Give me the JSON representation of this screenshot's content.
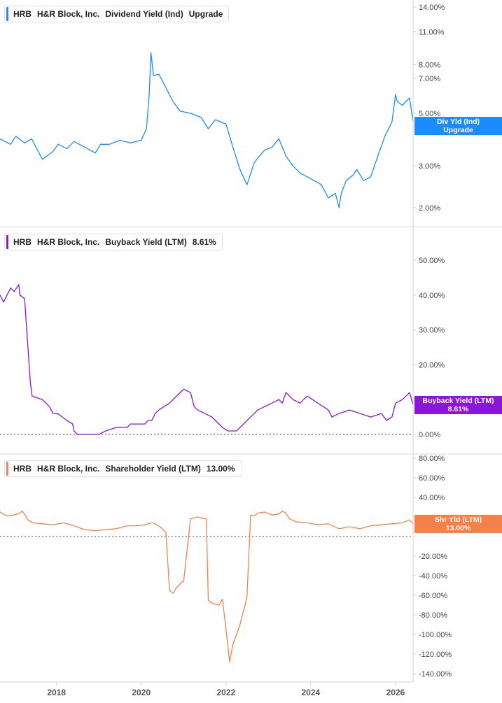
{
  "ticker": "HRB",
  "company": "H&R Block, Inc.",
  "panels": [
    {
      "metric": "Dividend Yield (Ind)",
      "value": "Upgrade",
      "badge_line1": "Div Yld (Ind)",
      "badge_line2": "Upgrade",
      "color": "#1a8cff"
    },
    {
      "metric": "Buyback Yield (LTM)",
      "value": "8.61%",
      "badge_line1": "Buyback Yield (LTM)",
      "badge_line2": "8.61%",
      "color": "#8a16d8"
    },
    {
      "metric": "Shareholder Yield (LTM)",
      "value": "13.00%",
      "badge_line1": "Shr Yld (LTM)",
      "badge_line2": "13.00%",
      "color": "#f5814a"
    }
  ],
  "x_tick_labels": [
    "2018",
    "2020",
    "2022",
    "2024",
    "2026"
  ],
  "chart_data": [
    {
      "type": "line",
      "series": [
        {
          "name": "Dividend Yield (Ind)",
          "color": "#1a8cff",
          "x": [
            "2016-09-01",
            "2016-12-01",
            "2017-01-15",
            "2017-04-01",
            "2017-06-01",
            "2017-09-01",
            "2017-12-01",
            "2018-01-15",
            "2018-04-01",
            "2018-06-01",
            "2018-09-01",
            "2018-12-01",
            "2019-01-15",
            "2019-04-01",
            "2019-07-01",
            "2019-10-01",
            "2020-01-01",
            "2020-02-15",
            "2020-03-10",
            "2020-03-25",
            "2020-04-15",
            "2020-06-01",
            "2020-08-01",
            "2020-10-01",
            "2020-12-01",
            "2021-03-01",
            "2021-06-01",
            "2021-08-01",
            "2021-10-01",
            "2022-01-01",
            "2022-03-01",
            "2022-05-01",
            "2022-07-01",
            "2022-09-01",
            "2022-10-15",
            "2022-12-01",
            "2023-02-01",
            "2023-04-01",
            "2023-06-01",
            "2023-08-01",
            "2023-10-01",
            "2023-12-01",
            "2024-02-01",
            "2024-04-01",
            "2024-06-01",
            "2024-08-01",
            "2024-09-01",
            "2024-09-20",
            "2024-11-01",
            "2025-01-01",
            "2025-02-01",
            "2025-04-01",
            "2025-06-01",
            "2025-08-01",
            "2025-10-01",
            "2025-12-01",
            "2026-01-01",
            "2026-01-15",
            "2026-03-01",
            "2026-05-01",
            "2026-06-01"
          ],
          "values": [
            3.9,
            3.7,
            4.0,
            3.75,
            3.9,
            3.2,
            3.45,
            3.7,
            3.55,
            3.8,
            3.6,
            3.4,
            3.7,
            3.7,
            3.85,
            3.75,
            3.85,
            4.3,
            6.0,
            9.0,
            7.2,
            7.3,
            6.4,
            5.6,
            5.1,
            5.0,
            4.8,
            4.3,
            4.7,
            4.5,
            3.6,
            2.9,
            2.5,
            3.1,
            3.3,
            3.5,
            3.6,
            3.9,
            3.3,
            3.0,
            2.8,
            2.7,
            2.6,
            2.5,
            2.2,
            2.3,
            2.0,
            2.3,
            2.6,
            2.75,
            2.9,
            2.6,
            2.7,
            3.3,
            4.0,
            4.6,
            6.0,
            5.6,
            5.4,
            5.8,
            4.6
          ]
        }
      ],
      "ylim": [
        1.8,
        14.0
      ],
      "log_scale": true,
      "y_ticks": [
        "14.00%",
        "11.00%",
        "8.00%",
        "7.00%",
        "5.00%",
        "3.00%",
        "2.00%"
      ]
    },
    {
      "type": "line",
      "series": [
        {
          "name": "Buyback Yield (LTM)",
          "color": "#8a16d8",
          "x": [
            "2016-09-01",
            "2016-10-01",
            "2016-12-01",
            "2017-01-01",
            "2017-02-10",
            "2017-02-20",
            "2017-04-01",
            "2017-05-20",
            "2017-06-05",
            "2017-09-01",
            "2017-11-01",
            "2017-12-01",
            "2018-01-10",
            "2018-04-01",
            "2018-05-20",
            "2018-06-01",
            "2018-07-01",
            "2018-11-01",
            "2019-01-01",
            "2019-03-01",
            "2019-06-01",
            "2019-09-01",
            "2019-10-01",
            "2019-12-01",
            "2020-01-01",
            "2020-02-01",
            "2020-03-01",
            "2020-04-01",
            "2020-05-01",
            "2020-06-01",
            "2020-09-01",
            "2020-11-01",
            "2021-01-01",
            "2021-03-01",
            "2021-04-01",
            "2021-05-01",
            "2021-09-01",
            "2021-12-01",
            "2022-01-15",
            "2022-03-01",
            "2022-04-01",
            "2022-06-01",
            "2022-08-01",
            "2022-10-01",
            "2022-12-01",
            "2023-02-01",
            "2023-04-01",
            "2023-05-01",
            "2023-06-01",
            "2023-08-01",
            "2023-10-01",
            "2023-12-01",
            "2024-03-01",
            "2024-06-01",
            "2024-07-01",
            "2024-09-01",
            "2024-12-01",
            "2025-03-01",
            "2025-06-01",
            "2025-09-01",
            "2025-10-15",
            "2025-12-01",
            "2026-01-01",
            "2026-03-01",
            "2026-05-01",
            "2026-06-01"
          ],
          "values": [
            40,
            38,
            42,
            41,
            43,
            40,
            39,
            15,
            11,
            10,
            8,
            6,
            6,
            4,
            3,
            1,
            0,
            0,
            0,
            1,
            2,
            2,
            3,
            3,
            3,
            3,
            4,
            4,
            6,
            7,
            9,
            11,
            13,
            12,
            8,
            7,
            5,
            2,
            1,
            1,
            1,
            3,
            5,
            7,
            8,
            9,
            10,
            9,
            12,
            10,
            9,
            11,
            9,
            7,
            5,
            6,
            7,
            6,
            5,
            6,
            4,
            5,
            9,
            10,
            12,
            8.6
          ]
        }
      ],
      "ylim": [
        -2,
        56
      ],
      "y_ticks": [
        "50.00%",
        "40.00%",
        "30.00%",
        "20.00%",
        "0.00%"
      ],
      "zero_reference_line": true
    },
    {
      "type": "line",
      "series": [
        {
          "name": "Shareholder Yield (LTM)",
          "color": "#f5814a",
          "x": [
            "2016-09-01",
            "2016-11-01",
            "2017-01-01",
            "2017-02-20",
            "2017-03-10",
            "2017-04-01",
            "2017-05-01",
            "2017-06-10",
            "2017-09-01",
            "2017-12-01",
            "2018-03-01",
            "2018-05-01",
            "2018-06-01",
            "2018-09-01",
            "2018-12-01",
            "2019-03-01",
            "2019-06-01",
            "2019-09-01",
            "2019-12-01",
            "2020-02-01",
            "2020-04-01",
            "2020-05-01",
            "2020-06-10",
            "2020-07-01",
            "2020-08-01",
            "2020-09-01",
            "2020-10-01",
            "2020-11-01",
            "2021-01-01",
            "2021-03-01",
            "2021-05-01",
            "2021-06-01",
            "2021-07-15",
            "2021-08-01",
            "2021-09-01",
            "2021-11-01",
            "2021-12-01",
            "2022-01-01",
            "2022-02-01",
            "2022-03-01",
            "2022-04-01",
            "2022-05-01",
            "2022-06-01",
            "2022-06-15",
            "2022-07-01",
            "2022-08-01",
            "2022-09-01",
            "2022-10-01",
            "2022-12-01",
            "2023-02-01",
            "2023-04-01",
            "2023-05-01",
            "2023-06-01",
            "2023-07-01",
            "2023-09-01",
            "2023-12-01",
            "2024-03-01",
            "2024-06-01",
            "2024-09-01",
            "2024-12-01",
            "2025-03-01",
            "2025-06-01",
            "2025-09-01",
            "2025-12-01",
            "2026-03-01",
            "2026-05-01",
            "2026-06-01"
          ],
          "values": [
            25,
            21,
            22,
            24,
            26,
            23,
            17,
            14,
            13,
            12,
            14,
            12,
            11,
            7,
            6,
            7,
            8,
            11,
            11,
            12,
            14,
            13,
            10,
            8,
            4,
            -55,
            -58,
            -52,
            -45,
            18,
            20,
            19,
            18,
            -65,
            -68,
            -70,
            -64,
            -95,
            -128,
            -110,
            -100,
            -90,
            -75,
            -70,
            -60,
            22,
            21,
            24,
            25,
            22,
            23,
            26,
            24,
            18,
            15,
            14,
            12,
            13,
            8,
            10,
            8,
            11,
            12,
            13,
            14,
            17,
            13
          ]
        }
      ],
      "ylim": [
        -145,
        85
      ],
      "y_ticks": [
        "80.00%",
        "60.00%",
        "40.00%",
        "20.00%",
        "0.00%",
        "-20.00%",
        "-40.00%",
        "-60.00%",
        "-80.00%",
        "-100.00%",
        "-120.00%",
        "-140.00%"
      ],
      "zero_reference_line": true
    }
  ]
}
